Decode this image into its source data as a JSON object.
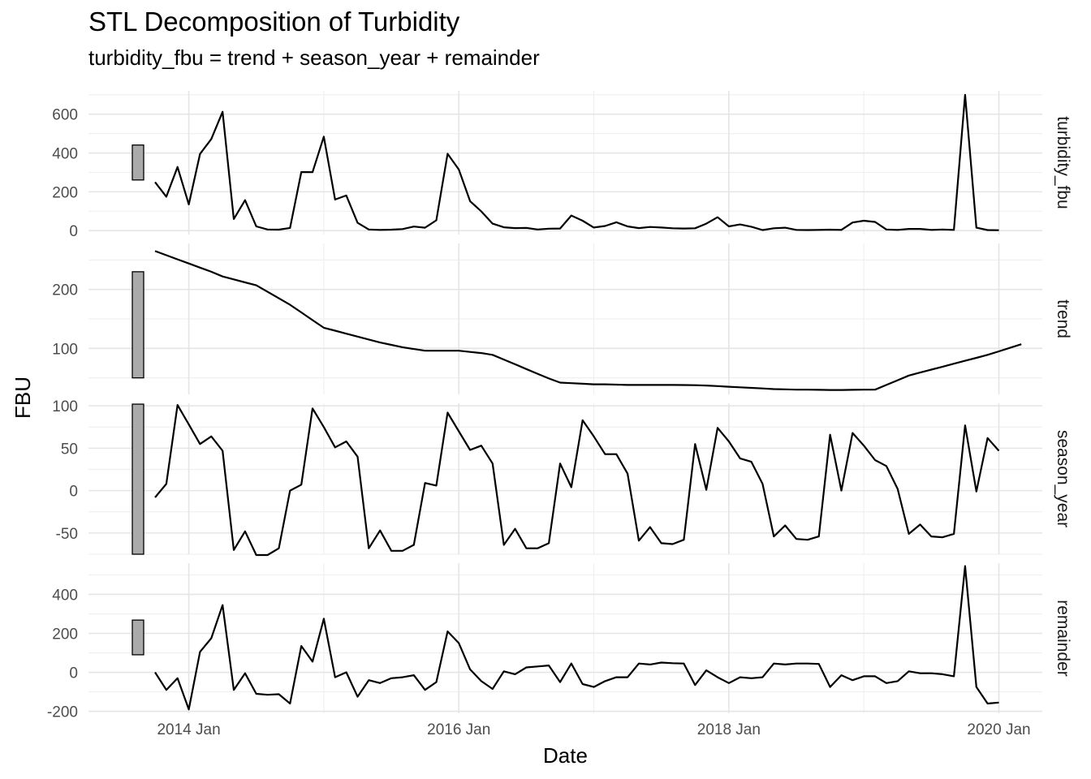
{
  "title": "STL Decomposition of Turbidity",
  "subtitle": "turbidity_fbu = trend + season_year + remainder",
  "chart_data": {
    "type": "line",
    "title": "STL Decomposition of Turbidity",
    "subtitle": "turbidity_fbu = trend + season_year + remainder",
    "xlabel": "Date",
    "ylabel": "FBU",
    "x_tick_labels": [
      "2014 Jan",
      "2016 Jan",
      "2018 Jan",
      "2020 Jan"
    ],
    "x_start": "2013 Oct",
    "x_frequency": "monthly",
    "line_color": "#000000",
    "scale_bar_color": "#aaaaaa",
    "grid": true,
    "facets": [
      {
        "name": "turbidity_fbu",
        "ylim": [
          -20,
          720
        ],
        "yticks": [
          0,
          200,
          400,
          600
        ],
        "scale_bar": [
          261,
          441
        ],
        "values": [
          250,
          175,
          328,
          135,
          395,
          472,
          612,
          60,
          157,
          22,
          6,
          5,
          14,
          302,
          301,
          484,
          160,
          181,
          40,
          6,
          4,
          5,
          8,
          21,
          15,
          53,
          396,
          315,
          152,
          99,
          36,
          17,
          13,
          14,
          6,
          10,
          11,
          78,
          51,
          16,
          24,
          43,
          22,
          13,
          19,
          16,
          12,
          11,
          12,
          36,
          69,
          22,
          32,
          20,
          3,
          12,
          15,
          4,
          3,
          4,
          5,
          4,
          42,
          51,
          45,
          6,
          4,
          9,
          9,
          4,
          6,
          4,
          700,
          15,
          3,
          2
        ]
      },
      {
        "name": "trend",
        "ylim": [
          22,
          278
        ],
        "yticks": [
          100,
          200
        ],
        "scale_bar": [
          50,
          230
        ],
        "values": [
          265,
          258,
          251,
          244,
          237,
          230,
          222,
          217,
          212,
          207,
          196,
          185,
          174,
          161,
          148,
          135,
          130,
          125,
          120,
          115,
          110,
          106,
          102,
          99,
          96,
          96,
          96,
          96,
          94,
          92,
          89,
          81,
          73,
          65,
          57,
          49,
          42,
          41,
          40,
          39,
          39,
          38.5,
          38,
          38,
          38,
          38,
          38,
          37.8,
          37.5,
          37,
          36,
          35,
          34,
          33,
          32,
          31,
          30.5,
          30,
          30,
          29.7,
          29.5,
          29.5,
          29.7,
          30,
          30,
          38,
          46,
          54,
          59,
          64,
          69,
          74,
          79,
          84,
          89,
          95,
          101,
          107
        ]
      },
      {
        "name": "season_year",
        "ylim": [
          -75,
          103
        ],
        "yticks": [
          -50,
          0,
          50,
          100
        ],
        "scale_bar": [
          -75,
          102
        ],
        "values": [
          -8,
          8,
          101,
          78,
          55,
          64,
          47,
          -70,
          -48,
          -76,
          -76,
          -68,
          0,
          7,
          97,
          75,
          51,
          58,
          40,
          -68,
          -47,
          -71,
          -71,
          -64,
          9,
          6,
          92,
          70,
          48,
          53,
          32,
          -64,
          -45,
          -68,
          -68,
          -62,
          32,
          4,
          83,
          64,
          43,
          43,
          20,
          -59,
          -43,
          -62,
          -63,
          -58,
          55,
          1,
          74,
          58,
          38,
          34,
          8,
          -54,
          -41,
          -57,
          -58,
          -54,
          66,
          0,
          68,
          53,
          36,
          29,
          2,
          -51,
          -40,
          -54,
          -55,
          -51,
          77,
          -1,
          62,
          47
        ]
      },
      {
        "name": "remainder",
        "ylim": [
          -210,
          560
        ],
        "yticks": [
          -200,
          0,
          200,
          400
        ],
        "scale_bar": [
          90,
          268
        ],
        "values": [
          0,
          -90,
          -30,
          -190,
          105,
          175,
          345,
          -90,
          -5,
          -110,
          -115,
          -112,
          -160,
          135,
          55,
          275,
          -25,
          0,
          -125,
          -40,
          -55,
          -30,
          -25,
          -15,
          -90,
          -50,
          210,
          150,
          15,
          -45,
          -85,
          5,
          -10,
          25,
          30,
          35,
          -50,
          45,
          -60,
          -75,
          -45,
          -25,
          -25,
          45,
          40,
          50,
          47,
          45,
          -65,
          10,
          -25,
          -55,
          -25,
          -30,
          -25,
          45,
          40,
          45,
          45,
          43,
          -75,
          -15,
          -40,
          -20,
          -20,
          -55,
          -45,
          5,
          -5,
          -5,
          -10,
          -20,
          545,
          -75,
          -160,
          -155
        ]
      }
    ]
  }
}
